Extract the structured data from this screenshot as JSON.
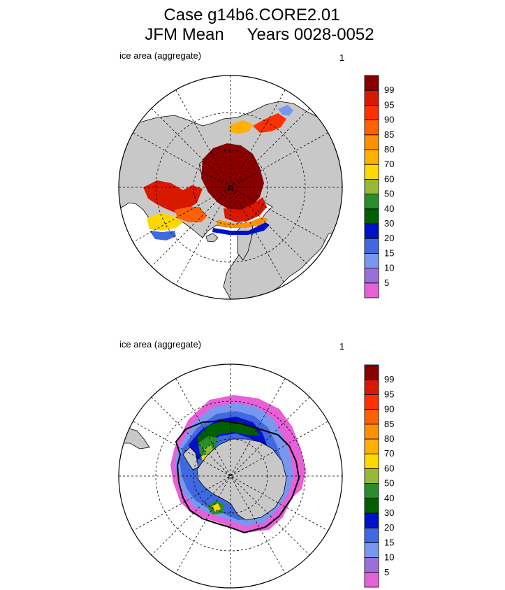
{
  "title": {
    "line1": "Case g14b6.CORE2.01",
    "line2": "JFM Mean     Years 0028-0052"
  },
  "colors": {
    "land": "#c8c8c8",
    "levels": [
      "#e860d8",
      "#9870d8",
      "#7898f0",
      "#4068e0",
      "#0010c8",
      "#006000",
      "#2a8c2a",
      "#98b838",
      "#ffd800",
      "#ffb000",
      "#ff9000",
      "#ff6000",
      "#ff3000",
      "#d81800",
      "#880000"
    ]
  },
  "chart_data": [
    {
      "type": "heatmap",
      "panel": "north",
      "label": "ice area  (aggregate)",
      "number": "1",
      "colorbar_labels": [
        "99",
        "95",
        "90",
        "85",
        "80",
        "70",
        "60",
        "50",
        "40",
        "30",
        "20",
        "15",
        "10",
        "5"
      ]
    },
    {
      "type": "heatmap",
      "panel": "south",
      "label": "ice area  (aggregate)",
      "number": "1",
      "colorbar_labels": [
        "99",
        "95",
        "90",
        "85",
        "80",
        "70",
        "60",
        "50",
        "40",
        "30",
        "20",
        "15",
        "10",
        "5"
      ]
    }
  ]
}
